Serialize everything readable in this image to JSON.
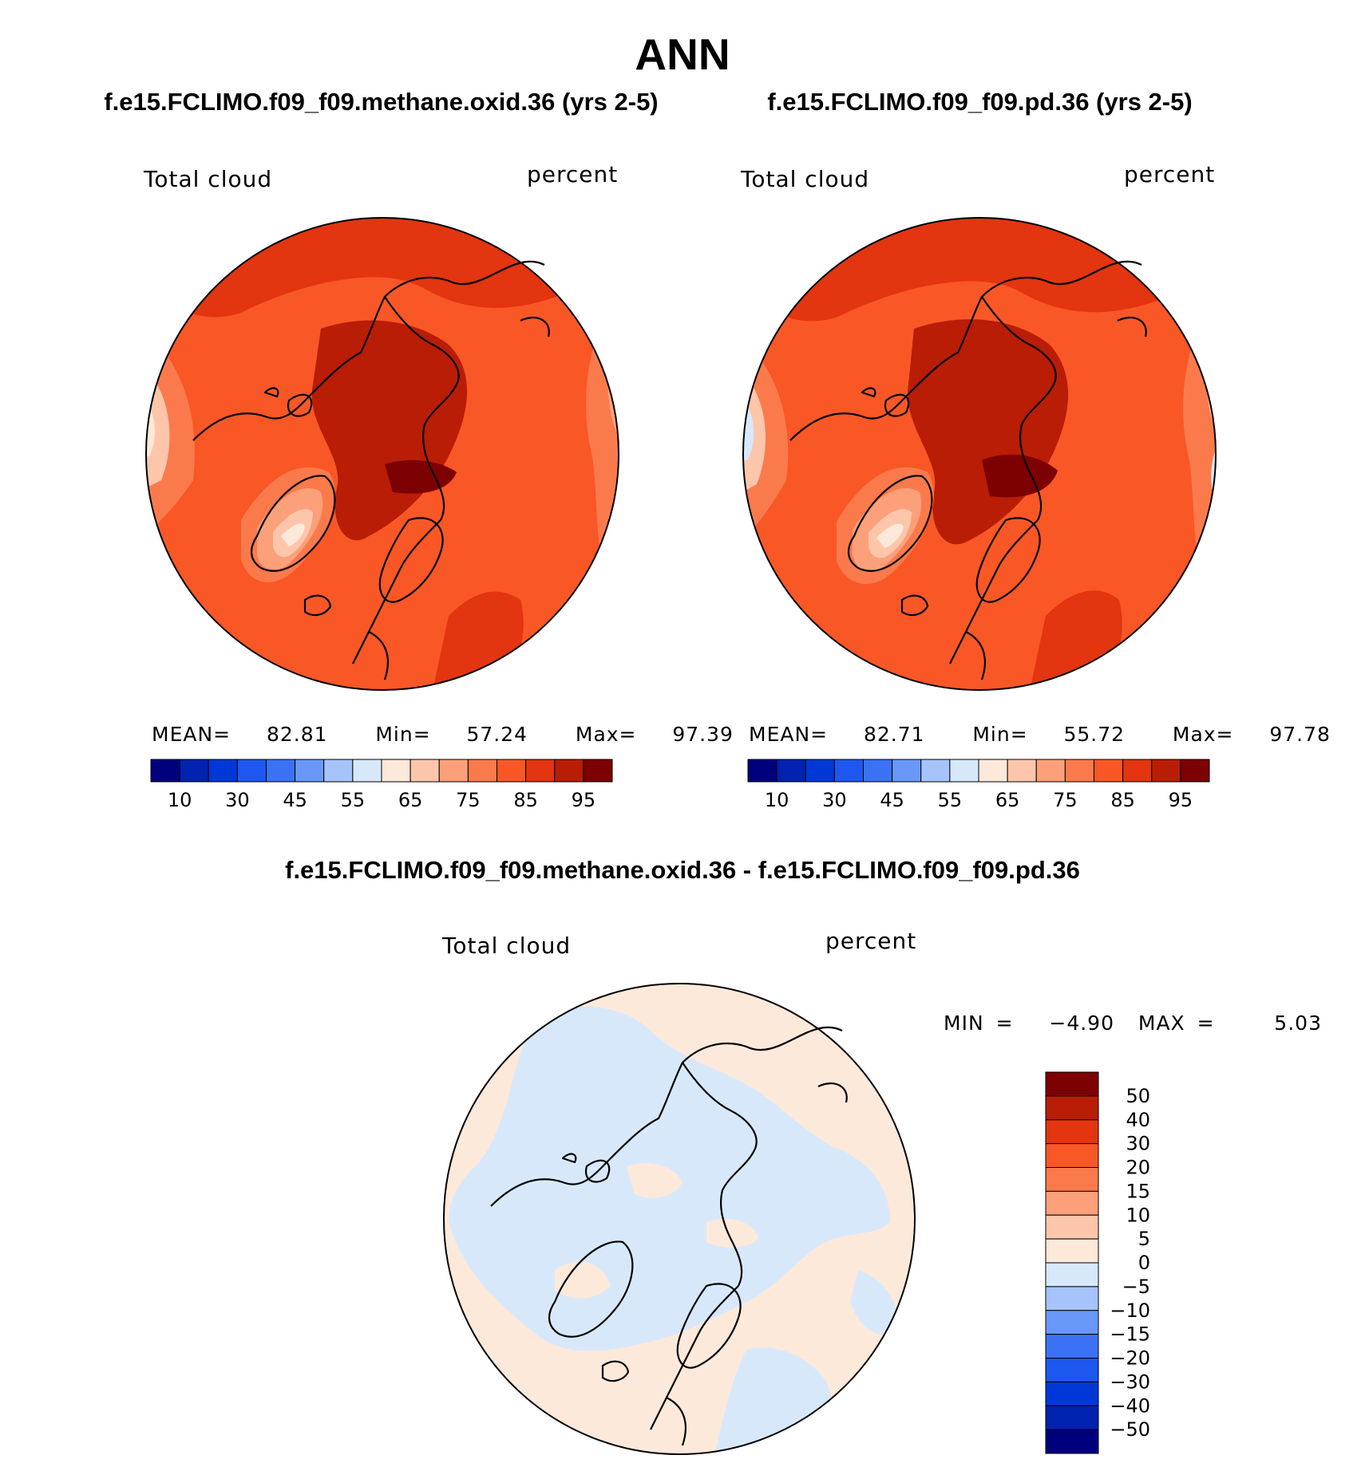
{
  "title": "ANN",
  "panels": [
    {
      "case": "f.e15.FCLIMO.f09_f09.methane.oxid.36 (yrs 2-5)",
      "variable": "Total cloud",
      "units": "percent",
      "stats": {
        "mean_label": "MEAN=",
        "mean": "82.81",
        "min_label": "Min=",
        "min": "57.24",
        "max_label": "Max=",
        "max": "97.39"
      }
    },
    {
      "case": "f.e15.FCLIMO.f09_f09.pd.36 (yrs 2-5)",
      "variable": "Total cloud",
      "units": "percent",
      "stats": {
        "mean_label": "MEAN=",
        "mean": "82.71",
        "min_label": "Min=",
        "min": "55.72",
        "max_label": "Max=",
        "max": "97.78"
      }
    }
  ],
  "diff_panel": {
    "case": "f.e15.FCLIMO.f09_f09.methane.oxid.36 - f.e15.FCLIMO.f09_f09.pd.36",
    "variable": "Total cloud",
    "units": "percent",
    "range_text": "MIN =   −4.90  MAX =     5.03"
  },
  "colorbar_abs": {
    "colors": [
      "#00007f",
      "#0022b0",
      "#0038d8",
      "#1e56f0",
      "#3b72f5",
      "#6a98f8",
      "#a6c4fb",
      "#d8e8fb",
      "#fde9da",
      "#fdc6ab",
      "#fca07a",
      "#fb7a4c",
      "#f95726",
      "#e23510",
      "#b91d06",
      "#7d0002"
    ],
    "labels": [
      "10",
      "30",
      "45",
      "55",
      "65",
      "75",
      "85",
      "95"
    ]
  },
  "colorbar_diff": {
    "colors": [
      "#7d0002",
      "#b91d06",
      "#e23510",
      "#f95726",
      "#fb7a4c",
      "#fca07a",
      "#fdc6ab",
      "#fde9da",
      "#d8e8fb",
      "#a6c4fb",
      "#6a98f8",
      "#3b72f5",
      "#1e56f0",
      "#0038d8",
      "#0022b0",
      "#00007f"
    ],
    "labels": [
      "50",
      "40",
      "30",
      "20",
      "15",
      "10",
      "5",
      "0",
      "−5",
      "−10",
      "−15",
      "−20",
      "−30",
      "−40",
      "−50"
    ]
  }
}
